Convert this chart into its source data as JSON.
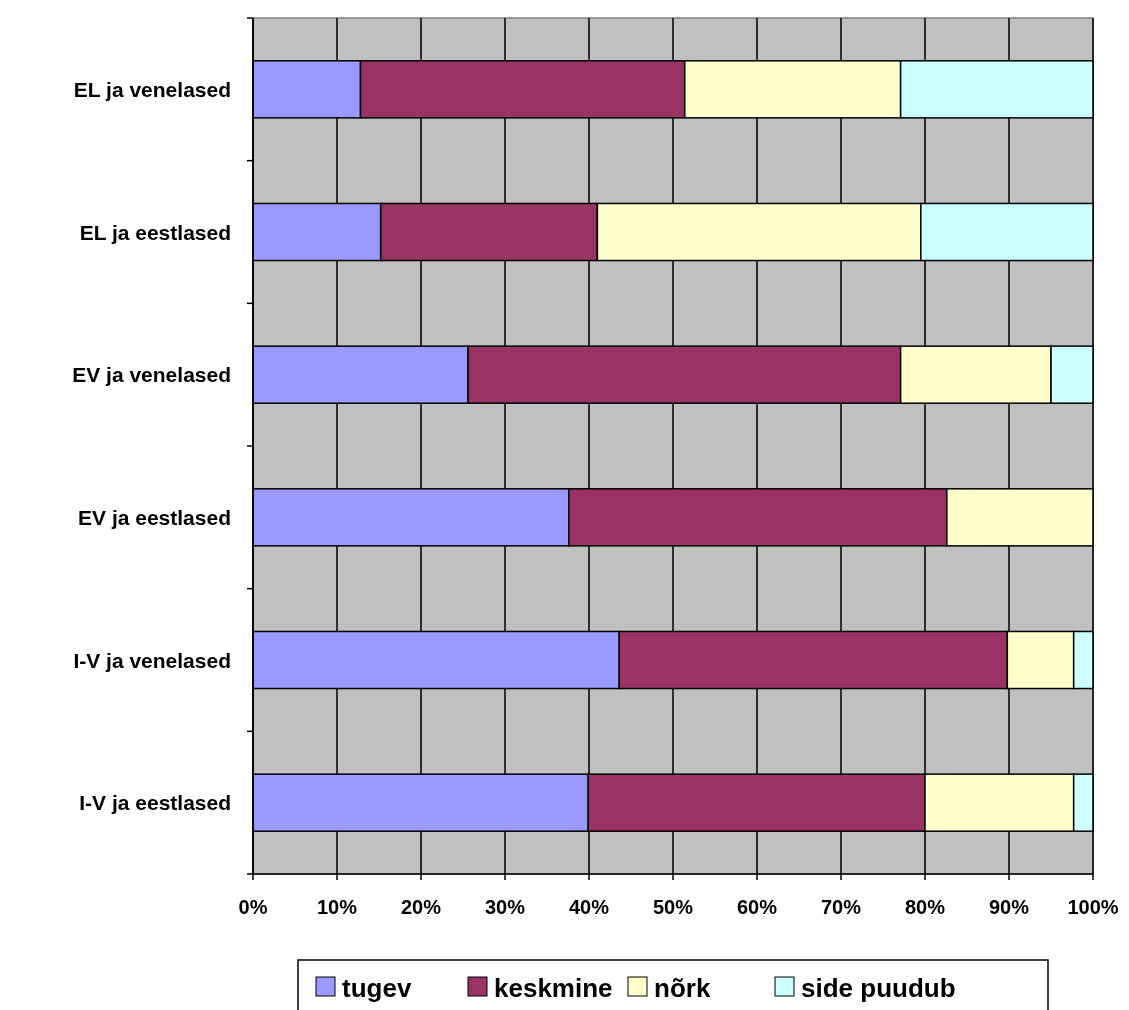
{
  "chart_data": {
    "type": "bar",
    "orientation": "horizontal",
    "stacked": true,
    "categories": [
      "EL ja venelased",
      "EL ja eestlased",
      "EV ja venelased",
      "EV ja eestlased",
      "I-V ja venelased",
      "I-V ja eestlased"
    ],
    "series": [
      {
        "name": "tugev",
        "color": "#9999ff",
        "values": [
          12.8,
          15.2,
          25.6,
          37.6,
          43.6,
          39.9
        ]
      },
      {
        "name": "keskmine",
        "color": "#993366",
        "values": [
          38.6,
          25.8,
          51.5,
          45.0,
          46.2,
          40.1
        ]
      },
      {
        "name": "nõrk",
        "color": "#ffffcc",
        "values": [
          25.7,
          38.5,
          17.9,
          17.4,
          7.9,
          17.7
        ]
      },
      {
        "name": "side puudub",
        "color": "#ccffff",
        "values": [
          22.9,
          20.5,
          5.0,
          0,
          2.3,
          2.3
        ]
      }
    ],
    "xlim": [
      0,
      100
    ],
    "xticks": [
      {
        "value": 0,
        "label": "0%"
      },
      {
        "value": 10,
        "label": "10%"
      },
      {
        "value": 20,
        "label": "20%"
      },
      {
        "value": 30,
        "label": "30%"
      },
      {
        "value": 40,
        "label": "40%"
      },
      {
        "value": 50,
        "label": "50%"
      },
      {
        "value": 60,
        "label": "60%"
      },
      {
        "value": 70,
        "label": "70%"
      },
      {
        "value": 80,
        "label": "80%"
      },
      {
        "value": 90,
        "label": "90%"
      },
      {
        "value": 100,
        "label": "100%"
      }
    ],
    "grid": "x",
    "legend": "bottom"
  }
}
